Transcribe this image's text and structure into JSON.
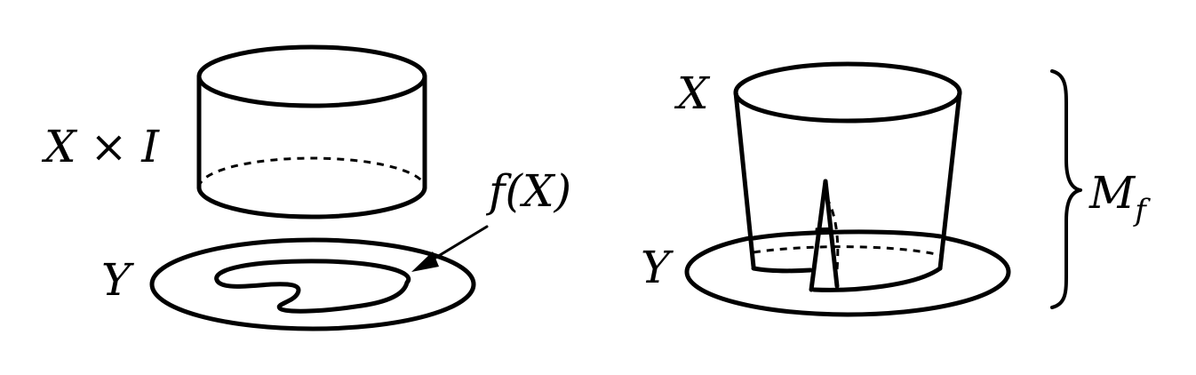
{
  "left_figure": {
    "cylinder_label": "X × I",
    "disk_label": "Y",
    "image_label": "f(X)"
  },
  "right_figure": {
    "top_label": "X",
    "disk_label": "Y",
    "brace_label_main": "M",
    "brace_label_sub": "f"
  },
  "colors": {
    "stroke": "#000000",
    "background": "#ffffff"
  }
}
